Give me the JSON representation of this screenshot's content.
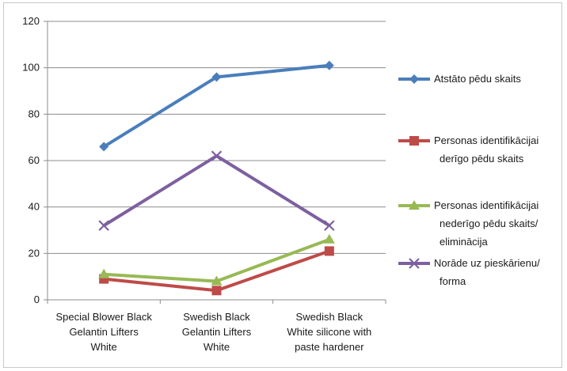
{
  "chart_data": {
    "type": "line",
    "categories": [
      [
        "Special Blower Black",
        "Gelantin Lifters",
        "White"
      ],
      [
        "Swedish Black",
        "Gelantin Lifters",
        "White"
      ],
      [
        "Swedish Black",
        "White silicone with",
        "paste hardener"
      ]
    ],
    "ylim": [
      0,
      120
    ],
    "yticks": [
      0,
      20,
      40,
      60,
      80,
      100,
      120
    ],
    "grid": true,
    "legend_position": "right",
    "series": [
      {
        "name": [
          "Atstāto pēdu skaits"
        ],
        "values": [
          66,
          96,
          101
        ],
        "color": "#4a7ebb",
        "marker": "diamond"
      },
      {
        "name": [
          "Personas identifikācijai",
          "derīgo pēdu skaits"
        ],
        "values": [
          9,
          4,
          21
        ],
        "color": "#be4b48",
        "marker": "square"
      },
      {
        "name": [
          "Personas identifikācijai",
          "nederīgo pēdu skaits/",
          "eliminācija"
        ],
        "values": [
          11,
          8,
          26
        ],
        "color": "#98b954",
        "marker": "triangle"
      },
      {
        "name": [
          "Norāde uz pieskārienu/",
          "forma"
        ],
        "values": [
          32,
          62,
          32
        ],
        "color": "#7d60a0",
        "marker": "x"
      }
    ]
  }
}
